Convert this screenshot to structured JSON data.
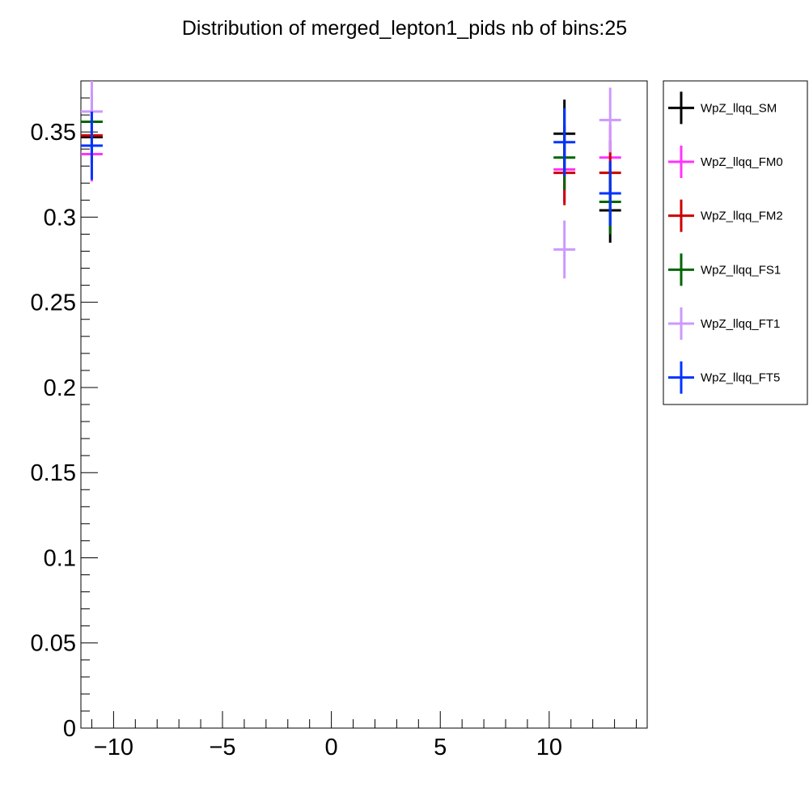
{
  "chart_data": {
    "type": "scatter",
    "title": "Distribution of merged_lepton1_pids nb of bins:25",
    "xlabel": "",
    "ylabel": "",
    "xlim": [
      -11.5,
      14.5
    ],
    "ylim": [
      0,
      0.38
    ],
    "x_ticks": [
      {
        "value": -10,
        "label": "−10"
      },
      {
        "value": -5,
        "label": "−5"
      },
      {
        "value": 0,
        "label": "0"
      },
      {
        "value": 5,
        "label": "5"
      },
      {
        "value": 10,
        "label": "10"
      }
    ],
    "y_ticks": [
      {
        "value": 0,
        "label": "0"
      },
      {
        "value": 0.05,
        "label": "0.05"
      },
      {
        "value": 0.1,
        "label": "0.1"
      },
      {
        "value": 0.15,
        "label": "0.15"
      },
      {
        "value": 0.2,
        "label": "0.2"
      },
      {
        "value": 0.25,
        "label": "0.25"
      },
      {
        "value": 0.3,
        "label": "0.3"
      },
      {
        "value": 0.35,
        "label": "0.35"
      }
    ],
    "bin_halfwidth": 0.5,
    "grid": false,
    "legend_position": "right",
    "series": [
      {
        "name": "WpZ_llqq_SM",
        "color": "#000000",
        "points": [
          {
            "x": -11,
            "y": 0.347,
            "err": 0.016
          },
          {
            "x": 10.7,
            "y": 0.349,
            "err": 0.02
          },
          {
            "x": 12.8,
            "y": 0.304,
            "err": 0.019
          }
        ]
      },
      {
        "name": "WpZ_llqq_FM0",
        "color": "#ff33ff",
        "points": [
          {
            "x": -11,
            "y": 0.337,
            "err": 0.016
          },
          {
            "x": 10.7,
            "y": 0.328,
            "err": 0.019
          },
          {
            "x": 12.8,
            "y": 0.335,
            "err": 0.019
          }
        ]
      },
      {
        "name": "WpZ_llqq_FM2",
        "color": "#cc0000",
        "points": [
          {
            "x": -11,
            "y": 0.348,
            "err": 0.016
          },
          {
            "x": 10.7,
            "y": 0.326,
            "err": 0.019
          },
          {
            "x": 12.8,
            "y": 0.326,
            "err": 0.019
          }
        ]
      },
      {
        "name": "WpZ_llqq_FS1",
        "color": "#006600",
        "points": [
          {
            "x": -11,
            "y": 0.356,
            "err": 0.016
          },
          {
            "x": 10.7,
            "y": 0.335,
            "err": 0.019
          },
          {
            "x": 12.8,
            "y": 0.309,
            "err": 0.019
          }
        ]
      },
      {
        "name": "WpZ_llqq_FT1",
        "color": "#cc99ff",
        "points": [
          {
            "x": -11,
            "y": 0.362,
            "err": 0.018
          },
          {
            "x": 10.7,
            "y": 0.281,
            "err": 0.017
          },
          {
            "x": 12.8,
            "y": 0.357,
            "err": 0.019
          }
        ]
      },
      {
        "name": "WpZ_llqq_FT5",
        "color": "#0033ff",
        "points": [
          {
            "x": -11,
            "y": 0.342,
            "err": 0.02
          },
          {
            "x": 10.7,
            "y": 0.344,
            "err": 0.02
          },
          {
            "x": 12.8,
            "y": 0.314,
            "err": 0.019
          }
        ]
      }
    ]
  }
}
